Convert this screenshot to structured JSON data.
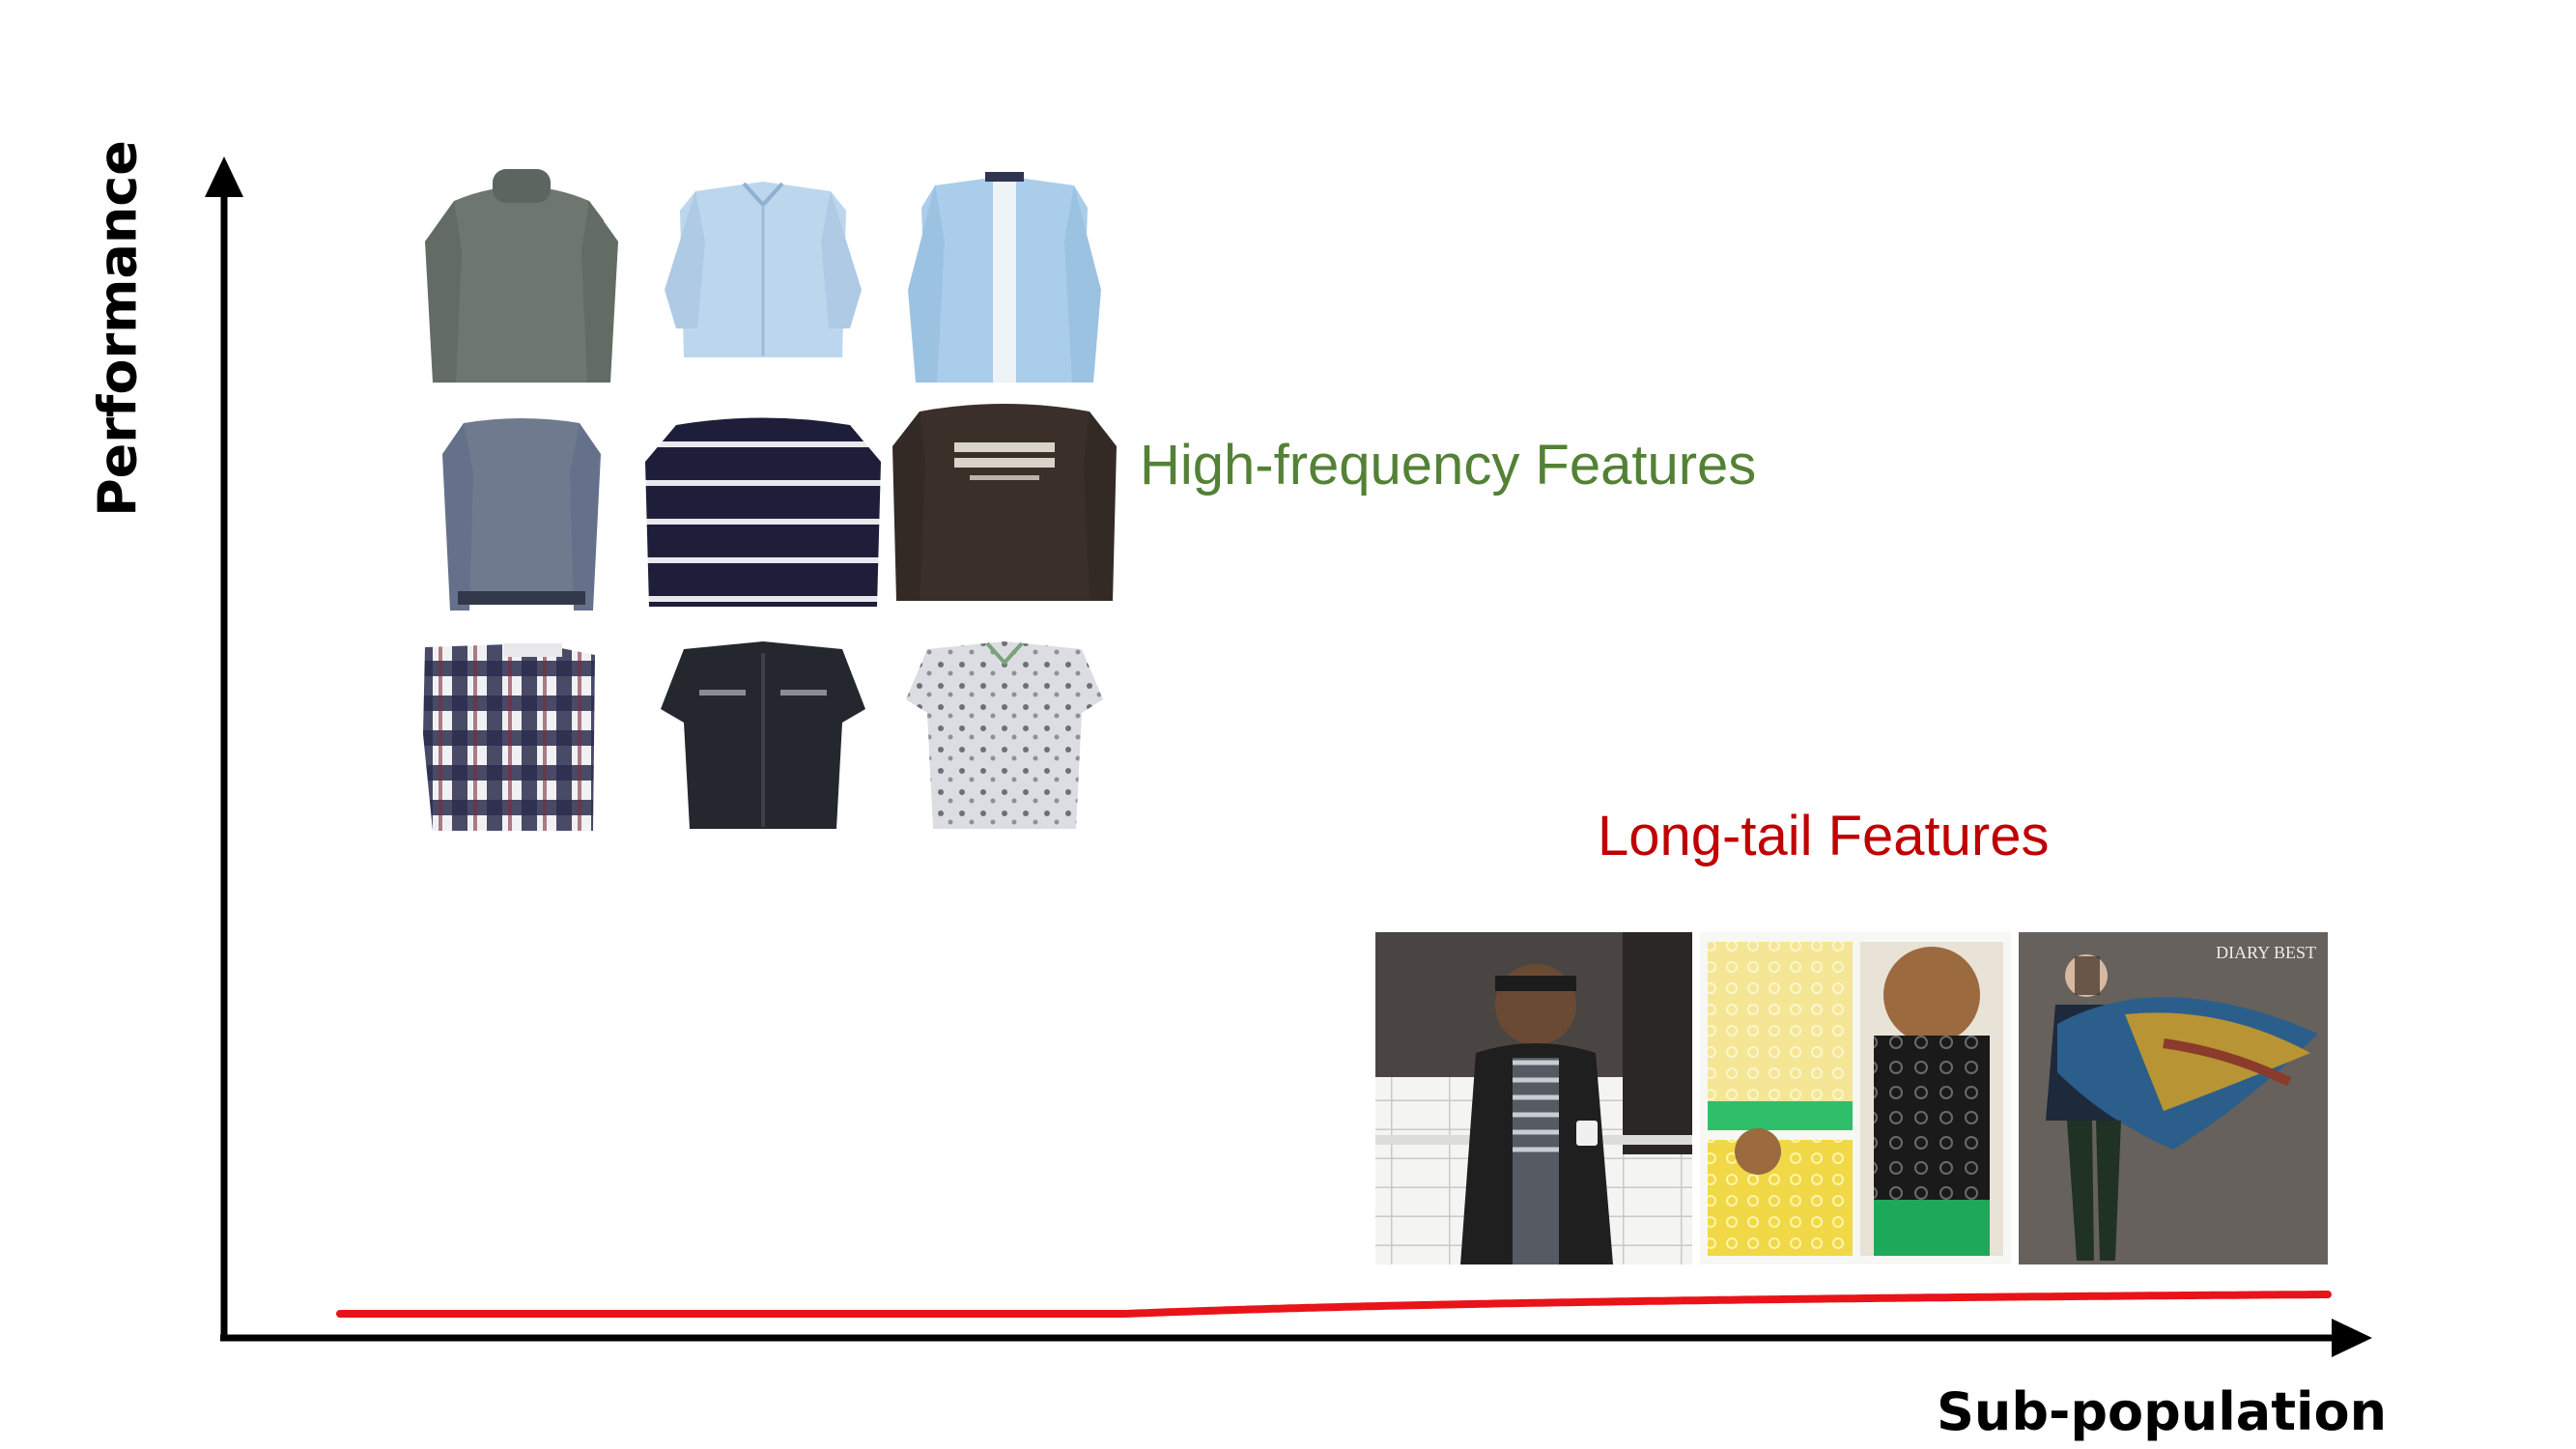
{
  "axes": {
    "y_label": "Performance",
    "x_label": "Sub-population"
  },
  "annotations": {
    "high_frequency": "High-frequency Features",
    "long_tail": "Long-tail Features"
  },
  "colors": {
    "curve": "#e8141a",
    "high_frequency_text": "#538135",
    "long_tail_text": "#c00000",
    "axis": "#000000"
  },
  "thumbnails": {
    "high_frequency": [
      {
        "garment": "turtleneck-sweater",
        "color": "#6e7670"
      },
      {
        "garment": "button-shirt",
        "color": "#bcd6ee"
      },
      {
        "garment": "button-shirt",
        "color": "#a9cdea"
      },
      {
        "garment": "knit-sweater",
        "color": "#6f7a8e"
      },
      {
        "garment": "striped-sweater",
        "color": "#1e1e3a"
      },
      {
        "garment": "print-sweatshirt",
        "color": "#3a2f29"
      },
      {
        "garment": "plaid-shirt",
        "color": "#2b2d4e"
      },
      {
        "garment": "short-sleeve-shirt",
        "color": "#25272e"
      },
      {
        "garment": "floral-short-sleeve-shirt",
        "color": "#d9dade"
      }
    ],
    "long_tail": [
      {
        "scene": "man-cafe",
        "color": "#1f1f1f"
      },
      {
        "scene": "lace-collage",
        "color": "#f2d84a"
      },
      {
        "scene": "model-scarf",
        "color": "#5d5a55",
        "caption": "DIARY BEST"
      }
    ]
  }
}
